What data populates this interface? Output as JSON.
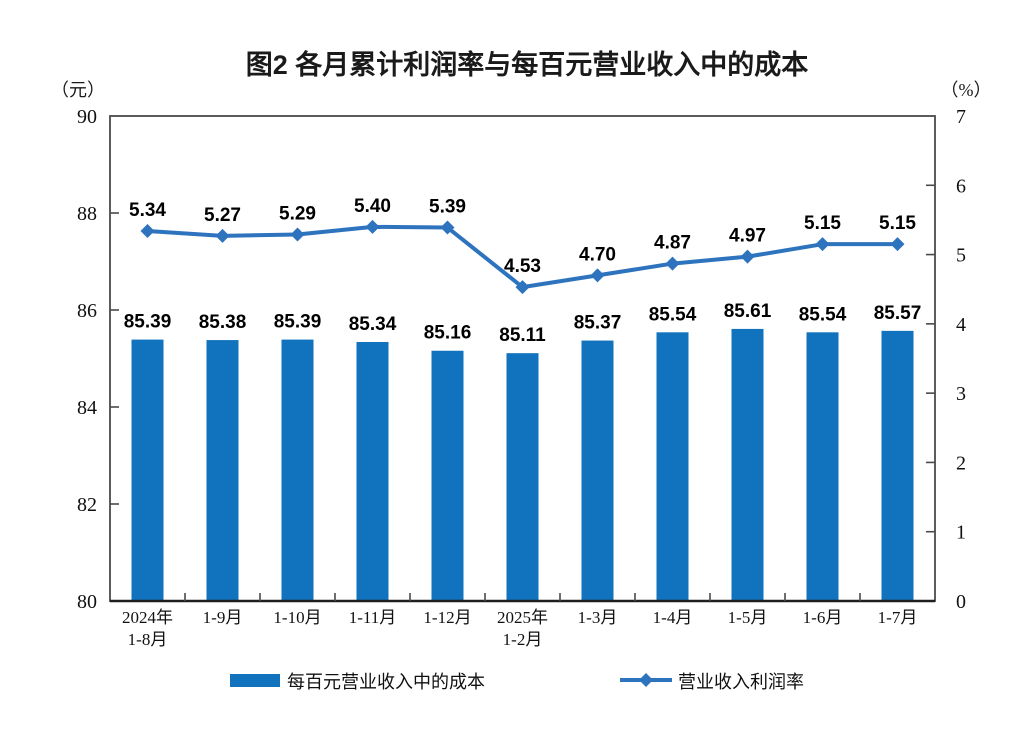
{
  "chart_data": {
    "type": "bar",
    "combo": "bar+line dual axis",
    "title": "图2 各月累计利润率与每百元营业收入中的成本",
    "categories": [
      [
        "2024年",
        "1-8月"
      ],
      [
        "1-9月"
      ],
      [
        "1-10月"
      ],
      [
        "1-11月"
      ],
      [
        "1-12月"
      ],
      [
        "2025年",
        "1-2月"
      ],
      [
        "1-3月"
      ],
      [
        "1-4月"
      ],
      [
        "1-5月"
      ],
      [
        "1-6月"
      ],
      [
        "1-7月"
      ]
    ],
    "series": [
      {
        "name": "每百元营业收入中的成本",
        "type": "bar",
        "axis": "left",
        "color": "#1172BD",
        "values": [
          85.39,
          85.38,
          85.39,
          85.34,
          85.16,
          85.11,
          85.37,
          85.54,
          85.61,
          85.54,
          85.57
        ]
      },
      {
        "name": "营业收入利润率",
        "type": "line",
        "axis": "right",
        "marker": "diamond",
        "color": "#2E73BE",
        "values": [
          5.34,
          5.27,
          5.29,
          5.4,
          5.39,
          4.53,
          4.7,
          4.87,
          4.97,
          5.15,
          5.15
        ]
      }
    ],
    "left_axis": {
      "unit_label": "（元）",
      "min": 80,
      "max": 90,
      "ticks": [
        90,
        88,
        86,
        84,
        82,
        80
      ]
    },
    "right_axis": {
      "unit_label": "（%）",
      "min": 0,
      "max": 7,
      "ticks": [
        7,
        6,
        5,
        4,
        3,
        2,
        1,
        0
      ]
    },
    "grid": false,
    "legend_position": "bottom",
    "colors": {
      "axis_line": "#4a4a4a",
      "label_text": "#000000",
      "background": "#ffffff"
    }
  }
}
